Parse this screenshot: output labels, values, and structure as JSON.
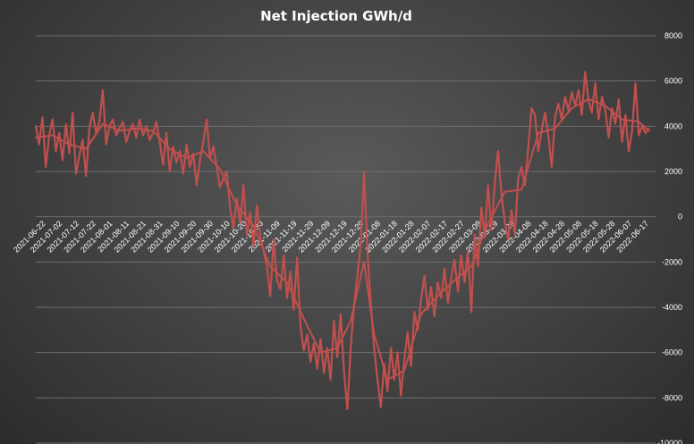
{
  "chart_data": {
    "type": "line",
    "title": "Net Injection GWh/d",
    "xlabel": "",
    "ylabel": "",
    "ylim": [
      -10000,
      8000
    ],
    "y_ticks": [
      8000,
      6000,
      4000,
      2000,
      0,
      -2000,
      -4000,
      -6000,
      -8000,
      -10000
    ],
    "x_range": [
      "2021-06-17",
      "2022-06-22"
    ],
    "x_ticks": [
      "2021-06-22",
      "2021-07-02",
      "2021-07-12",
      "2021-07-22",
      "2021-08-01",
      "2021-08-11",
      "2021-08-21",
      "2021-08-31",
      "2021-09-10",
      "2021-09-20",
      "2021-09-30",
      "2021-10-10",
      "2021-10-20",
      "2021-10-30",
      "2021-11-09",
      "2021-11-19",
      "2021-11-29",
      "2021-12-09",
      "2021-12-19",
      "2021-12-29",
      "2022-01-08",
      "2022-01-18",
      "2022-01-28",
      "2022-02-07",
      "2022-02-17",
      "2022-02-27",
      "2022-03-09",
      "2022-03-19",
      "2022-03-29",
      "2022-04-08",
      "2022-04-18",
      "2022-04-28",
      "2022-05-08",
      "2022-05-18",
      "2022-05-28",
      "2022-06-07",
      "2022-06-17"
    ],
    "grid": true,
    "legend": "none",
    "line_color": "#c0504d",
    "series": [
      {
        "values": [
          {
            "x": "2021-06-17",
            "y": 4000
          },
          {
            "x": "2021-06-19",
            "y": 3200
          },
          {
            "x": "2021-06-21",
            "y": 4400
          },
          {
            "x": "2021-06-23",
            "y": 2200
          },
          {
            "x": "2021-06-25",
            "y": 3600
          },
          {
            "x": "2021-06-27",
            "y": 4300
          },
          {
            "x": "2021-06-29",
            "y": 2900
          },
          {
            "x": "2021-07-01",
            "y": 3700
          },
          {
            "x": "2021-07-03",
            "y": 2500
          },
          {
            "x": "2021-07-05",
            "y": 4100
          },
          {
            "x": "2021-07-07",
            "y": 2800
          },
          {
            "x": "2021-07-09",
            "y": 4600
          },
          {
            "x": "2021-07-11",
            "y": 1900
          },
          {
            "x": "2021-07-13",
            "y": 2700
          },
          {
            "x": "2021-07-15",
            "y": 3400
          },
          {
            "x": "2021-07-17",
            "y": 1800
          },
          {
            "x": "2021-07-19",
            "y": 3900
          },
          {
            "x": "2021-07-21",
            "y": 4600
          },
          {
            "x": "2021-07-23",
            "y": 3700
          },
          {
            "x": "2021-07-25",
            "y": 4200
          },
          {
            "x": "2021-07-27",
            "y": 5600
          },
          {
            "x": "2021-07-29",
            "y": 3200
          },
          {
            "x": "2021-07-31",
            "y": 4000
          },
          {
            "x": "2021-08-02",
            "y": 4300
          },
          {
            "x": "2021-08-04",
            "y": 3600
          },
          {
            "x": "2021-08-06",
            "y": 3900
          },
          {
            "x": "2021-08-08",
            "y": 4200
          },
          {
            "x": "2021-08-10",
            "y": 3300
          },
          {
            "x": "2021-08-12",
            "y": 3800
          },
          {
            "x": "2021-08-14",
            "y": 4100
          },
          {
            "x": "2021-08-16",
            "y": 3500
          },
          {
            "x": "2021-08-18",
            "y": 4300
          },
          {
            "x": "2021-08-20",
            "y": 3600
          },
          {
            "x": "2021-08-22",
            "y": 4000
          },
          {
            "x": "2021-08-24",
            "y": 3400
          },
          {
            "x": "2021-08-26",
            "y": 3700
          },
          {
            "x": "2021-08-28",
            "y": 4200
          },
          {
            "x": "2021-08-30",
            "y": 3300
          },
          {
            "x": "2021-09-01",
            "y": 2300
          },
          {
            "x": "2021-09-03",
            "y": 3700
          },
          {
            "x": "2021-09-05",
            "y": 2000
          },
          {
            "x": "2021-09-07",
            "y": 3100
          },
          {
            "x": "2021-09-09",
            "y": 2400
          },
          {
            "x": "2021-09-11",
            "y": 2900
          },
          {
            "x": "2021-09-13",
            "y": 1900
          },
          {
            "x": "2021-09-15",
            "y": 3200
          },
          {
            "x": "2021-09-17",
            "y": 2200
          },
          {
            "x": "2021-09-19",
            "y": 2800
          },
          {
            "x": "2021-09-21",
            "y": 1400
          },
          {
            "x": "2021-09-23",
            "y": 2500
          },
          {
            "x": "2021-09-25",
            "y": 3300
          },
          {
            "x": "2021-09-27",
            "y": 4300
          },
          {
            "x": "2021-09-29",
            "y": 2600
          },
          {
            "x": "2021-10-01",
            "y": 3100
          },
          {
            "x": "2021-10-03",
            "y": 2200
          },
          {
            "x": "2021-10-05",
            "y": 1300
          },
          {
            "x": "2021-10-07",
            "y": 1700
          },
          {
            "x": "2021-10-09",
            "y": 2000
          },
          {
            "x": "2021-10-11",
            "y": 400
          },
          {
            "x": "2021-10-13",
            "y": -500
          },
          {
            "x": "2021-10-15",
            "y": 800
          },
          {
            "x": "2021-10-17",
            "y": -300
          },
          {
            "x": "2021-10-19",
            "y": 1400
          },
          {
            "x": "2021-10-21",
            "y": -800
          },
          {
            "x": "2021-10-23",
            "y": 200
          },
          {
            "x": "2021-10-25",
            "y": -1300
          },
          {
            "x": "2021-10-27",
            "y": 500
          },
          {
            "x": "2021-10-29",
            "y": -900
          },
          {
            "x": "2021-10-31",
            "y": -1500
          },
          {
            "x": "2021-11-02",
            "y": -2200
          },
          {
            "x": "2021-11-04",
            "y": -3500
          },
          {
            "x": "2021-11-06",
            "y": -1000
          },
          {
            "x": "2021-11-08",
            "y": -2800
          },
          {
            "x": "2021-11-10",
            "y": -3200
          },
          {
            "x": "2021-11-12",
            "y": -1700
          },
          {
            "x": "2021-11-14",
            "y": -3600
          },
          {
            "x": "2021-11-16",
            "y": -2400
          },
          {
            "x": "2021-11-18",
            "y": -4100
          },
          {
            "x": "2021-11-20",
            "y": -1800
          },
          {
            "x": "2021-11-22",
            "y": -4800
          },
          {
            "x": "2021-11-24",
            "y": -5900
          },
          {
            "x": "2021-11-26",
            "y": -5200
          },
          {
            "x": "2021-11-28",
            "y": -6400
          },
          {
            "x": "2021-11-30",
            "y": -5600
          },
          {
            "x": "2021-12-02",
            "y": -6700
          },
          {
            "x": "2021-12-04",
            "y": -5400
          },
          {
            "x": "2021-12-06",
            "y": -6900
          },
          {
            "x": "2021-12-08",
            "y": -5800
          },
          {
            "x": "2021-12-10",
            "y": -7200
          },
          {
            "x": "2021-12-12",
            "y": -4600
          },
          {
            "x": "2021-12-14",
            "y": -6200
          },
          {
            "x": "2021-12-16",
            "y": -4300
          },
          {
            "x": "2021-12-18",
            "y": -6800
          },
          {
            "x": "2021-12-20",
            "y": -8500
          },
          {
            "x": "2021-12-22",
            "y": -5800
          },
          {
            "x": "2021-12-24",
            "y": -3900
          },
          {
            "x": "2021-12-26",
            "y": -2600
          },
          {
            "x": "2021-12-28",
            "y": -1200
          },
          {
            "x": "2021-12-30",
            "y": 2000
          },
          {
            "x": "2022-01-01",
            "y": -1500
          },
          {
            "x": "2022-01-03",
            "y": -3800
          },
          {
            "x": "2022-01-05",
            "y": -5800
          },
          {
            "x": "2022-01-07",
            "y": -7200
          },
          {
            "x": "2022-01-09",
            "y": -8400
          },
          {
            "x": "2022-01-11",
            "y": -6500
          },
          {
            "x": "2022-01-13",
            "y": -7700
          },
          {
            "x": "2022-01-15",
            "y": -5800
          },
          {
            "x": "2022-01-17",
            "y": -7200
          },
          {
            "x": "2022-01-19",
            "y": -6000
          },
          {
            "x": "2022-01-21",
            "y": -7900
          },
          {
            "x": "2022-01-23",
            "y": -6300
          },
          {
            "x": "2022-01-25",
            "y": -5100
          },
          {
            "x": "2022-01-27",
            "y": -6600
          },
          {
            "x": "2022-01-29",
            "y": -4200
          },
          {
            "x": "2022-01-31",
            "y": -5000
          },
          {
            "x": "2022-02-02",
            "y": -3700
          },
          {
            "x": "2022-02-04",
            "y": -2600
          },
          {
            "x": "2022-02-06",
            "y": -4100
          },
          {
            "x": "2022-02-08",
            "y": -3100
          },
          {
            "x": "2022-02-10",
            "y": -4400
          },
          {
            "x": "2022-02-12",
            "y": -2900
          },
          {
            "x": "2022-02-14",
            "y": -3600
          },
          {
            "x": "2022-02-16",
            "y": -2300
          },
          {
            "x": "2022-02-18",
            "y": -3800
          },
          {
            "x": "2022-02-20",
            "y": -2700
          },
          {
            "x": "2022-02-22",
            "y": -1900
          },
          {
            "x": "2022-02-24",
            "y": -3300
          },
          {
            "x": "2022-02-26",
            "y": -1700
          },
          {
            "x": "2022-02-28",
            "y": -2900
          },
          {
            "x": "2022-03-02",
            "y": -1500
          },
          {
            "x": "2022-03-04",
            "y": -4200
          },
          {
            "x": "2022-03-06",
            "y": -800
          },
          {
            "x": "2022-03-08",
            "y": -2200
          },
          {
            "x": "2022-03-10",
            "y": 400
          },
          {
            "x": "2022-03-12",
            "y": -900
          },
          {
            "x": "2022-03-14",
            "y": 1400
          },
          {
            "x": "2022-03-16",
            "y": -600
          },
          {
            "x": "2022-03-18",
            "y": 1500
          },
          {
            "x": "2022-03-20",
            "y": 2900
          },
          {
            "x": "2022-03-22",
            "y": 1000
          },
          {
            "x": "2022-03-24",
            "y": -200
          },
          {
            "x": "2022-03-26",
            "y": -1000
          },
          {
            "x": "2022-03-28",
            "y": 300
          },
          {
            "x": "2022-03-30",
            "y": -800
          },
          {
            "x": "2022-04-01",
            "y": 1700
          },
          {
            "x": "2022-04-03",
            "y": 2200
          },
          {
            "x": "2022-04-05",
            "y": 1400
          },
          {
            "x": "2022-04-07",
            "y": 3100
          },
          {
            "x": "2022-04-09",
            "y": 4800
          },
          {
            "x": "2022-04-11",
            "y": 4500
          },
          {
            "x": "2022-04-13",
            "y": 2900
          },
          {
            "x": "2022-04-15",
            "y": 3800
          },
          {
            "x": "2022-04-17",
            "y": 4600
          },
          {
            "x": "2022-04-19",
            "y": 3600
          },
          {
            "x": "2022-04-21",
            "y": 2200
          },
          {
            "x": "2022-04-23",
            "y": 4400
          },
          {
            "x": "2022-04-25",
            "y": 5000
          },
          {
            "x": "2022-04-27",
            "y": 4300
          },
          {
            "x": "2022-04-29",
            "y": 5300
          },
          {
            "x": "2022-05-01",
            "y": 4700
          },
          {
            "x": "2022-05-03",
            "y": 5500
          },
          {
            "x": "2022-05-05",
            "y": 4900
          },
          {
            "x": "2022-05-07",
            "y": 5600
          },
          {
            "x": "2022-05-09",
            "y": 4500
          },
          {
            "x": "2022-05-11",
            "y": 6400
          },
          {
            "x": "2022-05-13",
            "y": 5100
          },
          {
            "x": "2022-05-15",
            "y": 4600
          },
          {
            "x": "2022-05-17",
            "y": 5900
          },
          {
            "x": "2022-05-19",
            "y": 4300
          },
          {
            "x": "2022-05-21",
            "y": 5300
          },
          {
            "x": "2022-05-23",
            "y": 4700
          },
          {
            "x": "2022-05-25",
            "y": 3500
          },
          {
            "x": "2022-05-27",
            "y": 4800
          },
          {
            "x": "2022-05-29",
            "y": 4100
          },
          {
            "x": "2022-05-31",
            "y": 5200
          },
          {
            "x": "2022-06-02",
            "y": 3300
          },
          {
            "x": "2022-06-04",
            "y": 4500
          },
          {
            "x": "2022-06-06",
            "y": 2900
          },
          {
            "x": "2022-06-08",
            "y": 3800
          },
          {
            "x": "2022-06-10",
            "y": 5900
          },
          {
            "x": "2022-06-12",
            "y": 3600
          },
          {
            "x": "2022-06-14",
            "y": 4000
          },
          {
            "x": "2022-06-16",
            "y": 3700
          },
          {
            "x": "2022-06-18",
            "y": 3900
          }
        ]
      },
      {
        "values": [
          {
            "x": "2021-06-17",
            "y": 3500
          },
          {
            "x": "2021-06-27",
            "y": 3600
          },
          {
            "x": "2021-07-07",
            "y": 3200
          },
          {
            "x": "2021-07-17",
            "y": 3000
          },
          {
            "x": "2021-07-27",
            "y": 4100
          },
          {
            "x": "2021-08-06",
            "y": 3800
          },
          {
            "x": "2021-08-16",
            "y": 3900
          },
          {
            "x": "2021-08-26",
            "y": 3800
          },
          {
            "x": "2021-09-05",
            "y": 3000
          },
          {
            "x": "2021-09-15",
            "y": 2600
          },
          {
            "x": "2021-09-25",
            "y": 2900
          },
          {
            "x": "2021-10-05",
            "y": 2100
          },
          {
            "x": "2021-10-15",
            "y": 500
          },
          {
            "x": "2021-10-25",
            "y": -400
          },
          {
            "x": "2021-11-04",
            "y": -2200
          },
          {
            "x": "2021-11-14",
            "y": -2900
          },
          {
            "x": "2021-11-24",
            "y": -4500
          },
          {
            "x": "2021-12-04",
            "y": -6000
          },
          {
            "x": "2021-12-14",
            "y": -5800
          },
          {
            "x": "2021-12-22",
            "y": -4600
          },
          {
            "x": "2021-12-30",
            "y": -2000
          },
          {
            "x": "2022-01-05",
            "y": -5200
          },
          {
            "x": "2022-01-13",
            "y": -7200
          },
          {
            "x": "2022-01-23",
            "y": -6800
          },
          {
            "x": "2022-02-02",
            "y": -4300
          },
          {
            "x": "2022-02-12",
            "y": -3500
          },
          {
            "x": "2022-02-22",
            "y": -2800
          },
          {
            "x": "2022-03-04",
            "y": -2200
          },
          {
            "x": "2022-03-14",
            "y": -300
          },
          {
            "x": "2022-03-24",
            "y": 1100
          },
          {
            "x": "2022-04-03",
            "y": 1200
          },
          {
            "x": "2022-04-13",
            "y": 3700
          },
          {
            "x": "2022-04-23",
            "y": 3900
          },
          {
            "x": "2022-05-03",
            "y": 4800
          },
          {
            "x": "2022-05-13",
            "y": 5200
          },
          {
            "x": "2022-05-23",
            "y": 4900
          },
          {
            "x": "2022-06-02",
            "y": 4300
          },
          {
            "x": "2022-06-12",
            "y": 4200
          },
          {
            "x": "2022-06-18",
            "y": 3800
          }
        ]
      }
    ]
  }
}
